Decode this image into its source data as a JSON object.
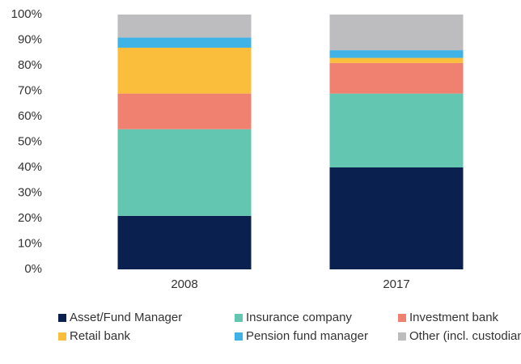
{
  "chart_data": {
    "type": "stacked_bar",
    "categories": [
      "2008",
      "2017"
    ],
    "series": [
      {
        "name": "Asset/Fund Manager",
        "color": "#0a2150",
        "values": [
          21,
          40
        ]
      },
      {
        "name": "Insurance company",
        "color": "#63c6b1",
        "values": [
          34,
          29
        ]
      },
      {
        "name": "Investment bank",
        "color": "#f08070",
        "values": [
          14,
          12
        ]
      },
      {
        "name": "Retail bank",
        "color": "#fbbd3c",
        "values": [
          18,
          2
        ]
      },
      {
        "name": "Pension fund manager",
        "color": "#3fb2e6",
        "values": [
          4,
          3
        ]
      },
      {
        "name": "Other (incl. custodian banks)",
        "color": "#bdbdbf",
        "values": [
          9,
          14
        ]
      }
    ],
    "ylim": [
      0,
      100
    ],
    "yticks": [
      {
        "value": 0,
        "label": "0%"
      },
      {
        "value": 10,
        "label": "10%"
      },
      {
        "value": 20,
        "label": "20%"
      },
      {
        "value": 30,
        "label": "30%"
      },
      {
        "value": 40,
        "label": "40%"
      },
      {
        "value": 50,
        "label": "50%"
      },
      {
        "value": 60,
        "label": "60%"
      },
      {
        "value": 70,
        "label": "70%"
      },
      {
        "value": 80,
        "label": "80%"
      },
      {
        "value": 90,
        "label": "90%"
      },
      {
        "value": 100,
        "label": "100%"
      }
    ],
    "legend": "bottom"
  }
}
